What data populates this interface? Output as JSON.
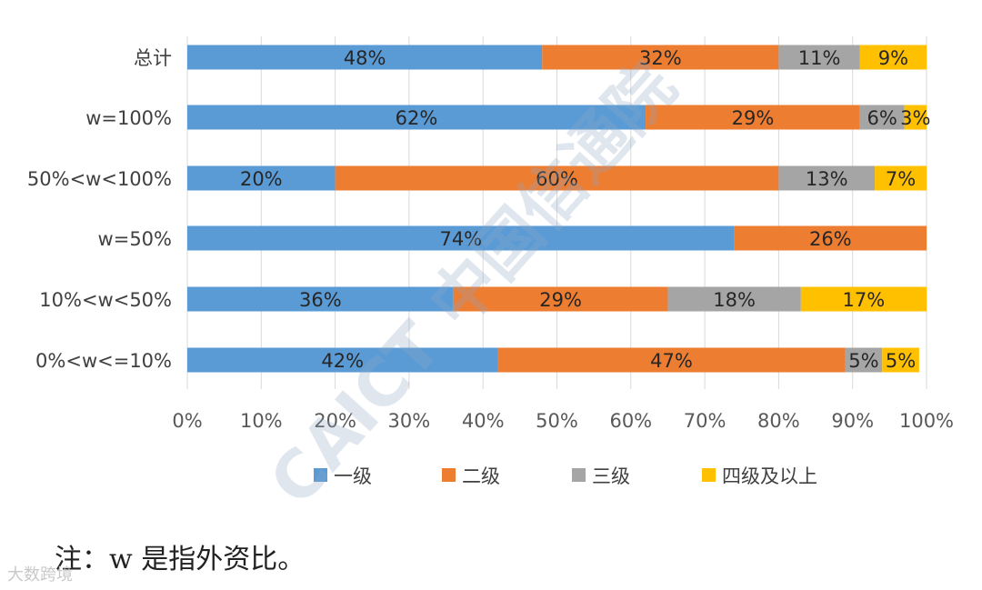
{
  "chart_data": {
    "type": "bar",
    "orientation": "horizontal",
    "stacked": true,
    "percent_stacked": true,
    "categories": [
      "总计",
      "w=100%",
      "50%<w<100%",
      "w=50%",
      "10%<w<50%",
      "0%<w<=10%"
    ],
    "series": [
      {
        "name": "一级",
        "color": "#5b9bd5",
        "values": [
          48,
          62,
          20,
          74,
          36,
          42
        ]
      },
      {
        "name": "二级",
        "color": "#ed7d31",
        "values": [
          32,
          29,
          60,
          26,
          29,
          47
        ]
      },
      {
        "name": "三级",
        "color": "#a5a5a5",
        "values": [
          11,
          6,
          13,
          0,
          18,
          5
        ]
      },
      {
        "name": "四级及以上",
        "color": "#ffc000",
        "values": [
          9,
          3,
          7,
          0,
          17,
          5
        ]
      }
    ],
    "data_labels": [
      [
        "48%",
        "32%",
        "11%",
        "9%"
      ],
      [
        "62%",
        "29%",
        "6%",
        "3%"
      ],
      [
        "20%",
        "60%",
        "13%",
        "7%"
      ],
      [
        "74%",
        "26%",
        "",
        ""
      ],
      [
        "36%",
        "29%",
        "18%",
        "17%"
      ],
      [
        "42%",
        "47%",
        "5%",
        "5%"
      ]
    ],
    "x_ticks": [
      "0%",
      "10%",
      "20%",
      "30%",
      "40%",
      "50%",
      "60%",
      "70%",
      "80%",
      "90%",
      "100%"
    ],
    "xlim": [
      0,
      100
    ],
    "grid": "vertical",
    "legend": "bottom"
  },
  "note": "注：w 是指外资比。",
  "watermark": "CAICT 中国信通院",
  "footer_mark": "大数跨境"
}
